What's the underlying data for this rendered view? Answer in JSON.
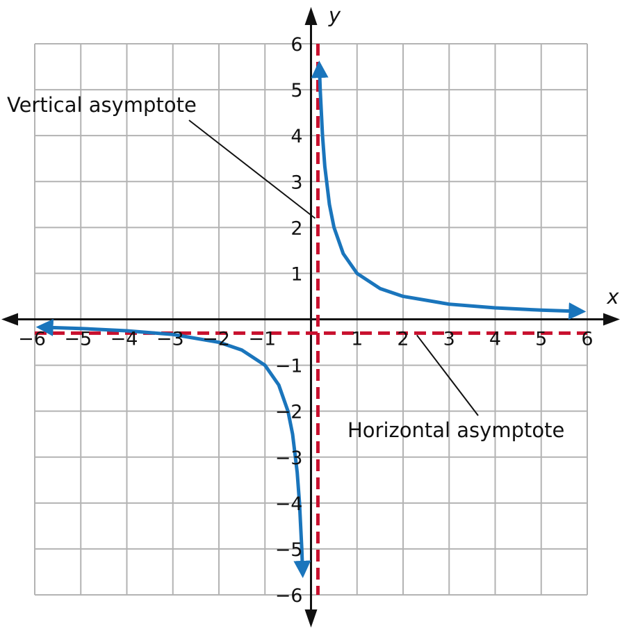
{
  "chart_data": {
    "type": "line",
    "xlim": [
      -6,
      6
    ],
    "ylim": [
      -6,
      6
    ],
    "grid": true,
    "xlabel": "x",
    "ylabel": "y",
    "x_ticks": [
      "−6",
      "−5",
      "−4",
      "−3",
      "−2",
      "−1",
      "1",
      "2",
      "3",
      "4",
      "5",
      "6"
    ],
    "y_ticks": [
      "6",
      "5",
      "4",
      "3",
      "2",
      "1",
      "−1",
      "−2",
      "−3",
      "−4",
      "−5",
      "−6"
    ],
    "series": [
      {
        "color": "#1a75bc",
        "branches": [
          {
            "x": [
              0.18,
              0.2,
              0.25,
              0.3,
              0.4,
              0.5,
              0.7,
              1,
              1.5,
              2,
              3,
              4,
              5,
              5.9
            ],
            "y": [
              5.56,
              5,
              4,
              3.33,
              2.5,
              2,
              1.43,
              1,
              0.67,
              0.5,
              0.33,
              0.25,
              0.2,
              0.17
            ]
          },
          {
            "x": [
              -0.18,
              -0.2,
              -0.25,
              -0.3,
              -0.4,
              -0.5,
              -0.7,
              -1,
              -1.5,
              -2,
              -3,
              -4,
              -5,
              -5.9
            ],
            "y": [
              -5.56,
              -5,
              -4,
              -3.33,
              -2.5,
              -2,
              -1.43,
              -1,
              -0.67,
              -0.5,
              -0.33,
              -0.25,
              -0.2,
              -0.17
            ]
          }
        ]
      }
    ],
    "asymptotes": [
      {
        "kind": "vertical",
        "x": 0.15,
        "color": "#c8102e"
      },
      {
        "kind": "horizontal",
        "y": -0.3,
        "color": "#c8102e"
      }
    ],
    "annotations": [
      {
        "text": "Vertical asymptote",
        "points_to": [
          0.15,
          2.2
        ]
      },
      {
        "text": "Horizontal asymptote",
        "points_to": [
          2.3,
          -0.3
        ]
      }
    ]
  }
}
